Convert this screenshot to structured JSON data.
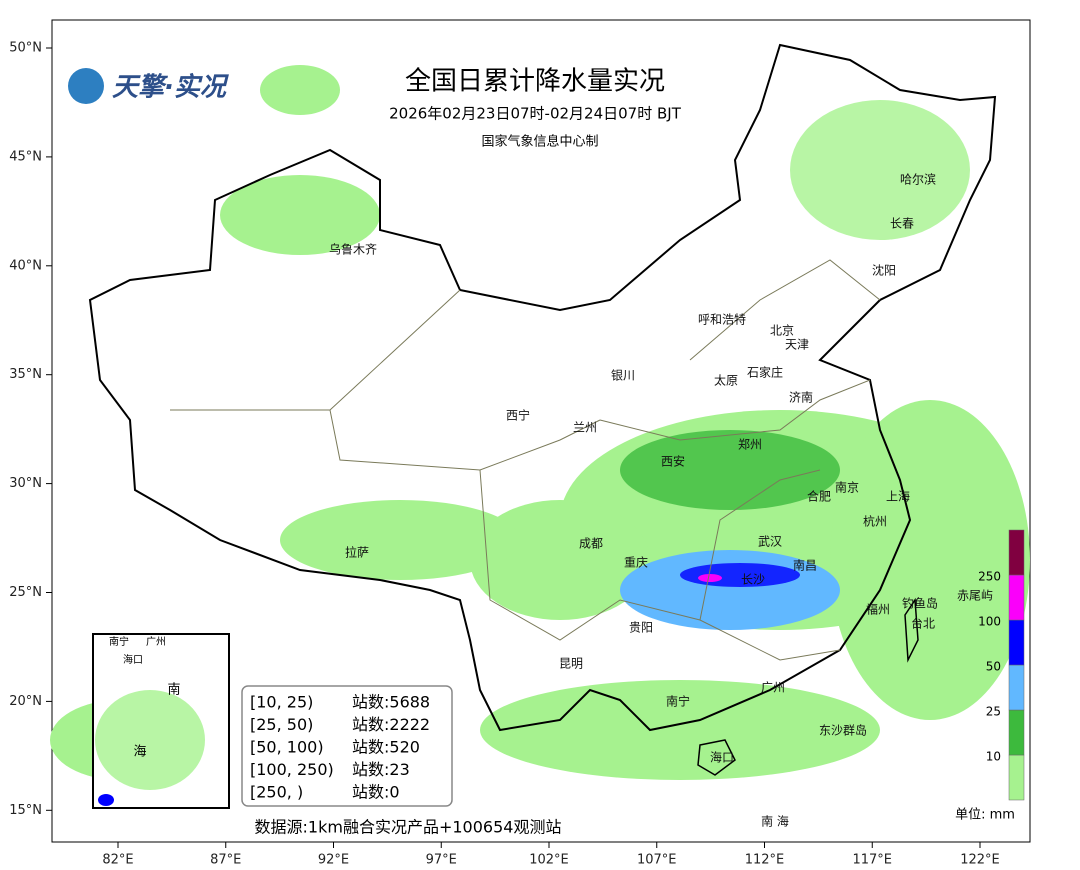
{
  "header": {
    "logo": "天擎·实况",
    "title": "全国日累计降水量实况",
    "subtitle": "2026年02月23日07时-02月24日07时 BJT",
    "credit": "国家气象信息中心制"
  },
  "axes": {
    "lat_labels": [
      "50°N",
      "45°N",
      "40°N",
      "35°N",
      "30°N",
      "25°N",
      "20°N",
      "15°N"
    ],
    "lon_labels": [
      "82°E",
      "87°E",
      "92°E",
      "97°E",
      "102°E",
      "107°E",
      "112°E",
      "117°E",
      "122°E"
    ]
  },
  "cities": [
    "乌鲁木齐",
    "哈尔滨",
    "长春",
    "沈阳",
    "呼和浩特",
    "北京",
    "天津",
    "银川",
    "太原",
    "石家庄",
    "济南",
    "西宁",
    "兰州",
    "郑州",
    "西安",
    "南京",
    "合肥",
    "上海",
    "杭州",
    "成都",
    "重庆",
    "武汉",
    "长沙",
    "南昌",
    "拉萨",
    "福州",
    "钓鱼岛",
    "赤尾屿",
    "台北",
    "贵阳",
    "昆明",
    "广州",
    "南宁",
    "东沙群岛",
    "海口",
    "南 海"
  ],
  "inset": {
    "labels": [
      "南宁",
      "广州",
      "海口",
      "南",
      "海"
    ]
  },
  "stats": {
    "rows": [
      {
        "range": "[10, 25)",
        "count": "站数:5688"
      },
      {
        "range": "[25, 50)",
        "count": "站数:2222"
      },
      {
        "range": "[50, 100)",
        "count": "站数:520"
      },
      {
        "range": "[100, 250)",
        "count": "站数:23"
      },
      {
        "range": "[250, )",
        "count": "站数:0"
      }
    ]
  },
  "source": "数据源:1km融合实况产品+100654观测站",
  "colorbar": {
    "ticks": [
      "10",
      "25",
      "50",
      "100",
      "250"
    ],
    "unit": "单位: mm"
  }
}
